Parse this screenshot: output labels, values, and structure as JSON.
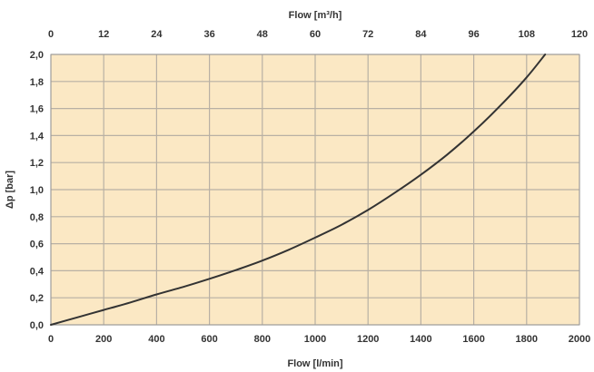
{
  "chart_data": {
    "type": "line",
    "xlabel": "Flow [l/min]",
    "x2label": "Flow [m³/h]",
    "ylabel": "Δp [bar]",
    "xlim": [
      0,
      2000
    ],
    "x2lim": [
      0,
      120
    ],
    "ylim": [
      0,
      2.0
    ],
    "x_ticks": [
      "0",
      "200",
      "400",
      "600",
      "800",
      "1000",
      "1200",
      "1400",
      "1600",
      "1800",
      "2000"
    ],
    "x2_ticks": [
      "0",
      "12",
      "24",
      "36",
      "48",
      "60",
      "72",
      "84",
      "96",
      "108",
      "120"
    ],
    "y_ticks": [
      "0,0",
      "0,2",
      "0,4",
      "0,6",
      "0,8",
      "1,0",
      "1,2",
      "1,4",
      "1,6",
      "1,8",
      "2,0"
    ],
    "grid": true,
    "colors": {
      "plot_bg": "#fbe8c4",
      "grid": "#b8b0a4",
      "line": "#333333",
      "frame": "#999999"
    },
    "series": [
      {
        "x": [
          0,
          100,
          200,
          300,
          400,
          500,
          600,
          700,
          800,
          900,
          1000,
          1100,
          1200,
          1300,
          1400,
          1500,
          1600,
          1700,
          1800,
          1870
        ],
        "values": [
          0,
          0.055,
          0.11,
          0.165,
          0.225,
          0.28,
          0.34,
          0.405,
          0.475,
          0.555,
          0.645,
          0.74,
          0.85,
          0.975,
          1.11,
          1.26,
          1.43,
          1.62,
          1.83,
          2.0
        ]
      }
    ]
  }
}
